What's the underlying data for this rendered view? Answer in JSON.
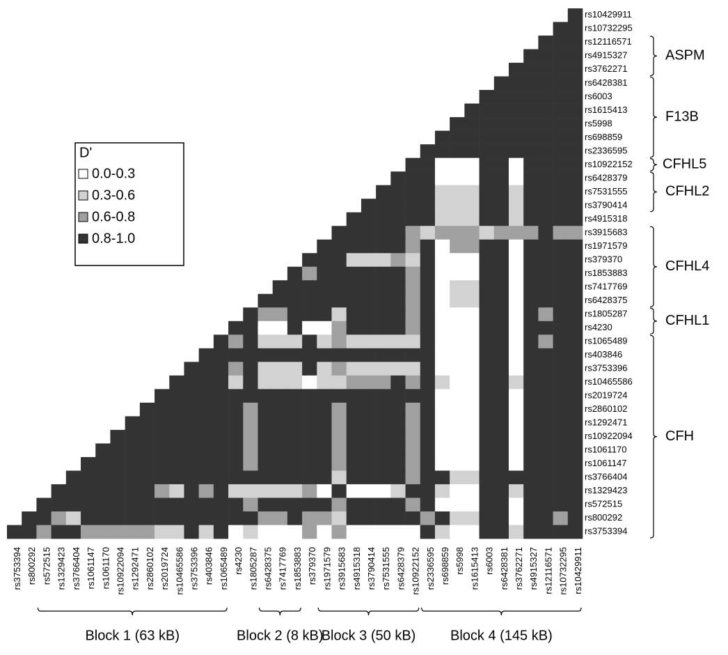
{
  "chart_data": {
    "type": "heatmap",
    "rows": [
      "rs10429911",
      "rs10732295",
      "rs12116571",
      "rs4915327",
      "rs3762271",
      "rs6428381",
      "rs6003",
      "rs1615413",
      "rs5998",
      "rs698859",
      "rs2336595",
      "rs10922152",
      "rs6428379",
      "rs7531555",
      "rs3790414",
      "rs4915318",
      "rs3915683",
      "rs1971579",
      "rs379370",
      "rs1853883",
      "rs7417769",
      "rs6428375",
      "rs1805287",
      "rs4230",
      "rs1065489",
      "rs403846",
      "rs3753396",
      "rs10465586",
      "rs2019724",
      "rs2860102",
      "rs1292471",
      "rs10922094",
      "rs1061170",
      "rs1061147",
      "rs3766404",
      "rs1329423",
      "rs572515",
      "rs800292",
      "rs3753394"
    ],
    "columns": [
      "rs3753394",
      "rs800292",
      "rs572515",
      "rs1329423",
      "rs3766404",
      "rs1061147",
      "rs1061170",
      "rs10922094",
      "rs1292471",
      "rs2860102",
      "rs2019724",
      "rs10465586",
      "rs3753396",
      "rs403846",
      "rs1065489",
      "rs4230",
      "rs1805287",
      "rs6428375",
      "rs7417769",
      "rs1853883",
      "rs379370",
      "rs1971579",
      "rs3915683",
      "rs4915318",
      "rs3790414",
      "rs7531555",
      "rs6428379",
      "rs10922152",
      "rs2336595",
      "rs698859",
      "rs5998",
      "rs1615413",
      "rs6003",
      "rs6428381",
      "rs3762271",
      "rs4915327",
      "rs12116571",
      "rs10732295",
      "rs10429911"
    ],
    "cells": [
      "3",
      "33",
      "333",
      "3333",
      "33333",
      "333333",
      "3333333",
      "33333333",
      "333333333",
      "3333333333",
      "33333333333",
      "330003303333",
      "3330003303333",
      "33331113313333",
      "333331113313333",
      "3333331113313333",
      "33333212221222322",
      "333333230223303333",
      "3331112130003303333",
      "32333333230003303333",
      "333333333230113303333",
      "3333333333230113303333",
      "32233313333230003303233",
      "330030023333230003303333",
      "3231113121111130003303233",
      "33333333333333330003303333",
      "333231113121111130003303333",
      "3333131110112223231003313333",
      "33333333333333333330003303333",
      "333333323333323333230003303333",
      "3333333323333323333230003303333",
      "33333333323333323333230003303333",
      "333333333323333323333230003303333",
      "3333333333323333323333230003303333",
      "33333333333333333313333233113333333",
      "333333321323111112030001331003313333",
      "3333333333333323333323333230003303333",
      "33213333333333332232213333323113303323",
      "332332222211313010002020000031003313333"
    ],
    "legend": {
      "title": "D'",
      "items": [
        {
          "label": "0.0-0.3",
          "color": "#ffffff"
        },
        {
          "label": "0.3-0.6",
          "color": "#d2d2d2"
        },
        {
          "label": "0.6-0.8",
          "color": "#a0a0a0"
        },
        {
          "label": "0.8-1.0",
          "color": "#333333"
        }
      ]
    },
    "genes": [
      {
        "label": "ASPM",
        "rows": [
          2,
          4
        ]
      },
      {
        "label": "F13B",
        "rows": [
          5,
          10
        ]
      },
      {
        "label": "CFHL5",
        "rows": [
          11,
          11
        ]
      },
      {
        "label": "CFHL2",
        "rows": [
          12,
          14
        ]
      },
      {
        "label": "CFHL4",
        "rows": [
          16,
          21
        ]
      },
      {
        "label": "CFHL1",
        "rows": [
          22,
          23
        ]
      },
      {
        "label": "CFH",
        "rows": [
          24,
          38
        ]
      }
    ],
    "blocks": [
      {
        "label": "Block 1 (63 kB)",
        "columns": [
          2,
          14
        ]
      },
      {
        "label": "Block 2 (8 kB)",
        "columns": [
          17,
          19
        ]
      },
      {
        "label": "Block 3 (50 kB)",
        "columns": [
          21,
          27
        ]
      },
      {
        "label": "Block 4 (145 kB)",
        "columns": [
          28,
          38
        ]
      }
    ]
  }
}
